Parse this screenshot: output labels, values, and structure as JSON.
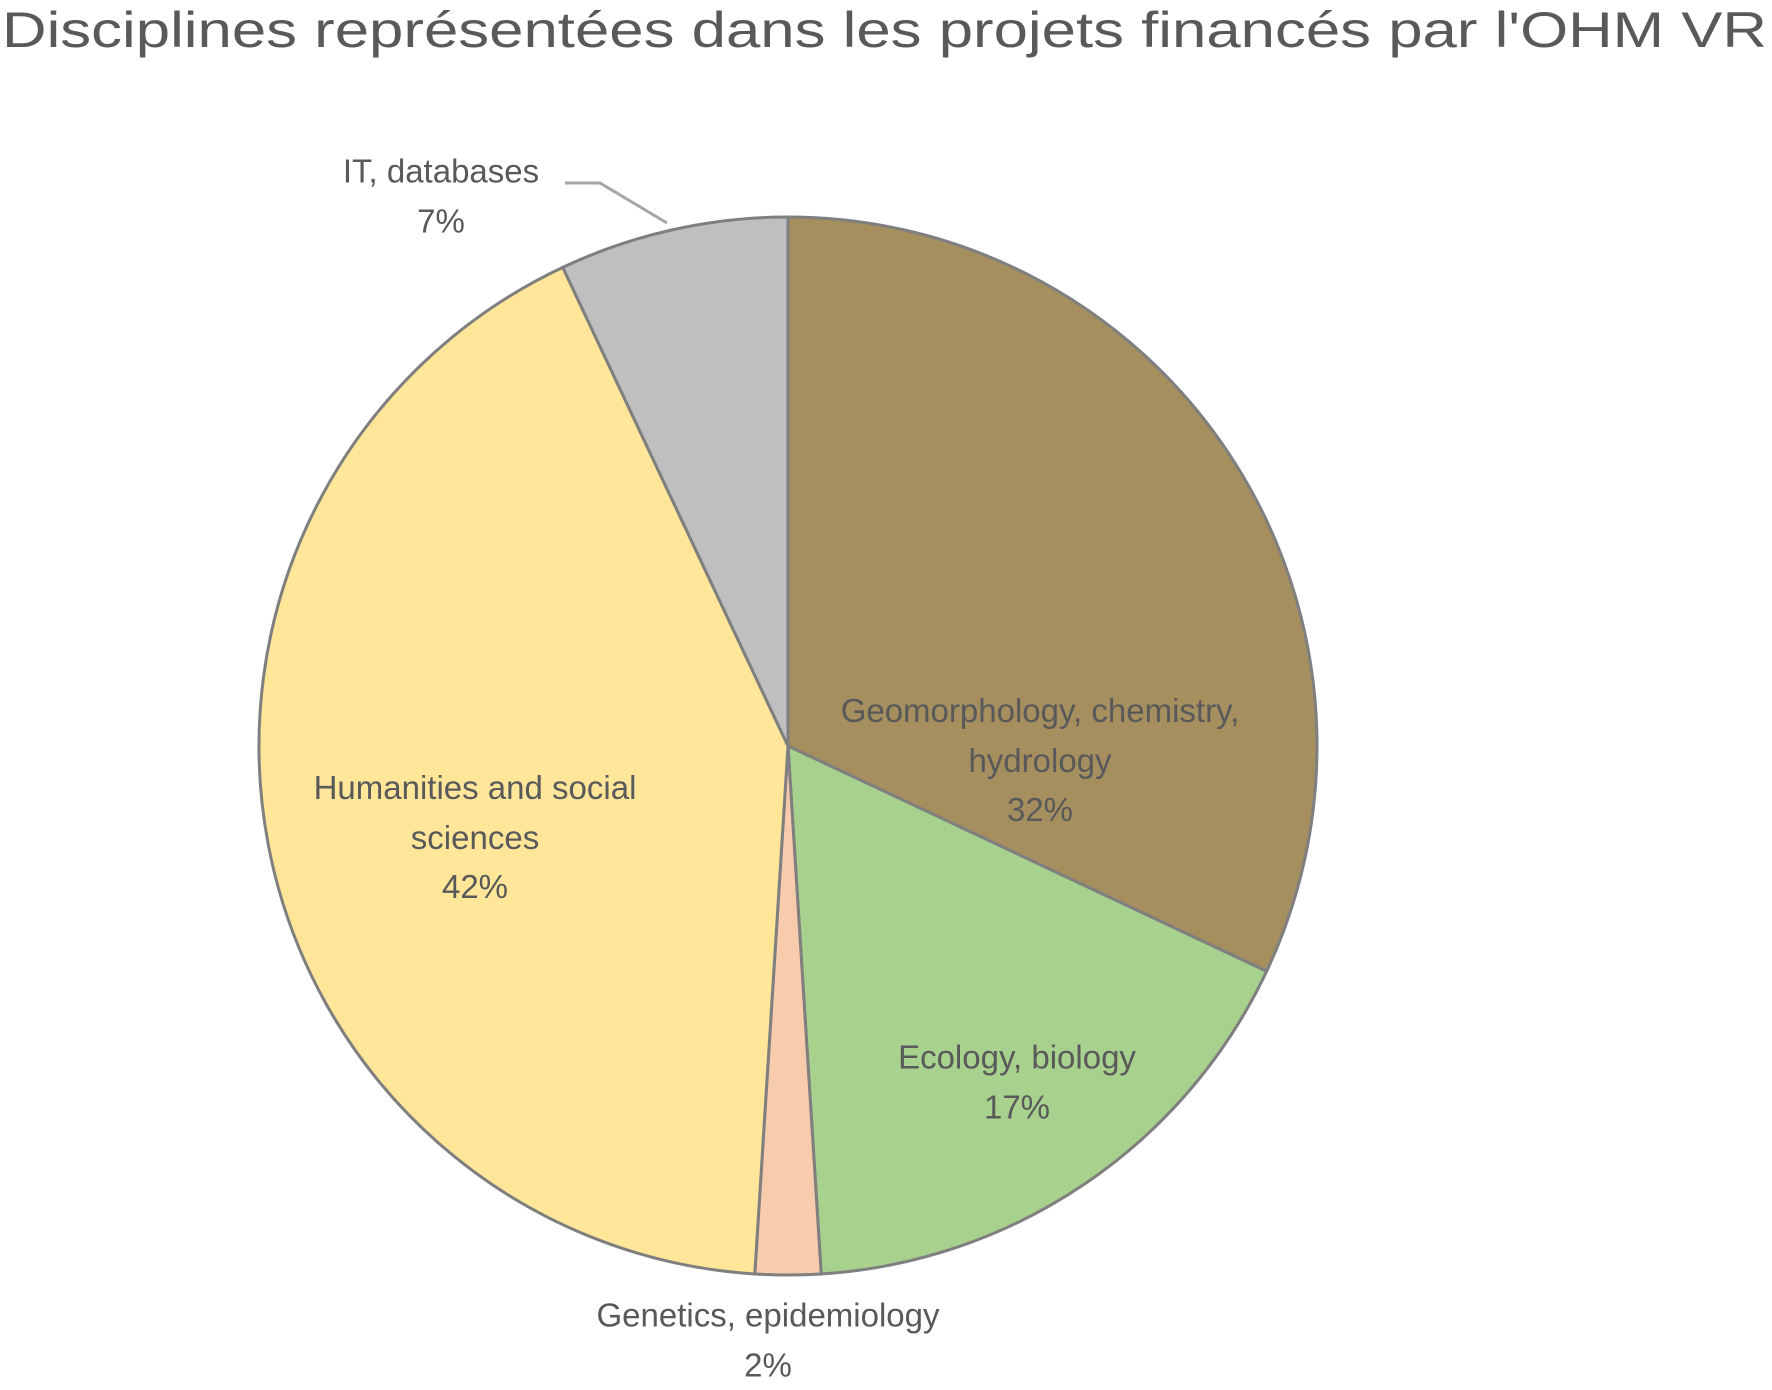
{
  "chart_data": {
    "type": "pie",
    "title": "Disciplines représentées dans les projets financés par l'OHM VR",
    "categories": [
      "Geomorphology, chemistry, hydrology",
      "Ecology, biology",
      "Genetics, epidemiology",
      "Humanities and social sciences",
      "IT, databases"
    ],
    "values": [
      32,
      17,
      2,
      42,
      7
    ],
    "value_labels": [
      "32%",
      "17%",
      "2%",
      "42%",
      "7%"
    ],
    "colors": [
      "#a68f5f",
      "#a9d18e",
      "#f8cbad",
      "#ffe699",
      "#bfbfbf"
    ]
  }
}
